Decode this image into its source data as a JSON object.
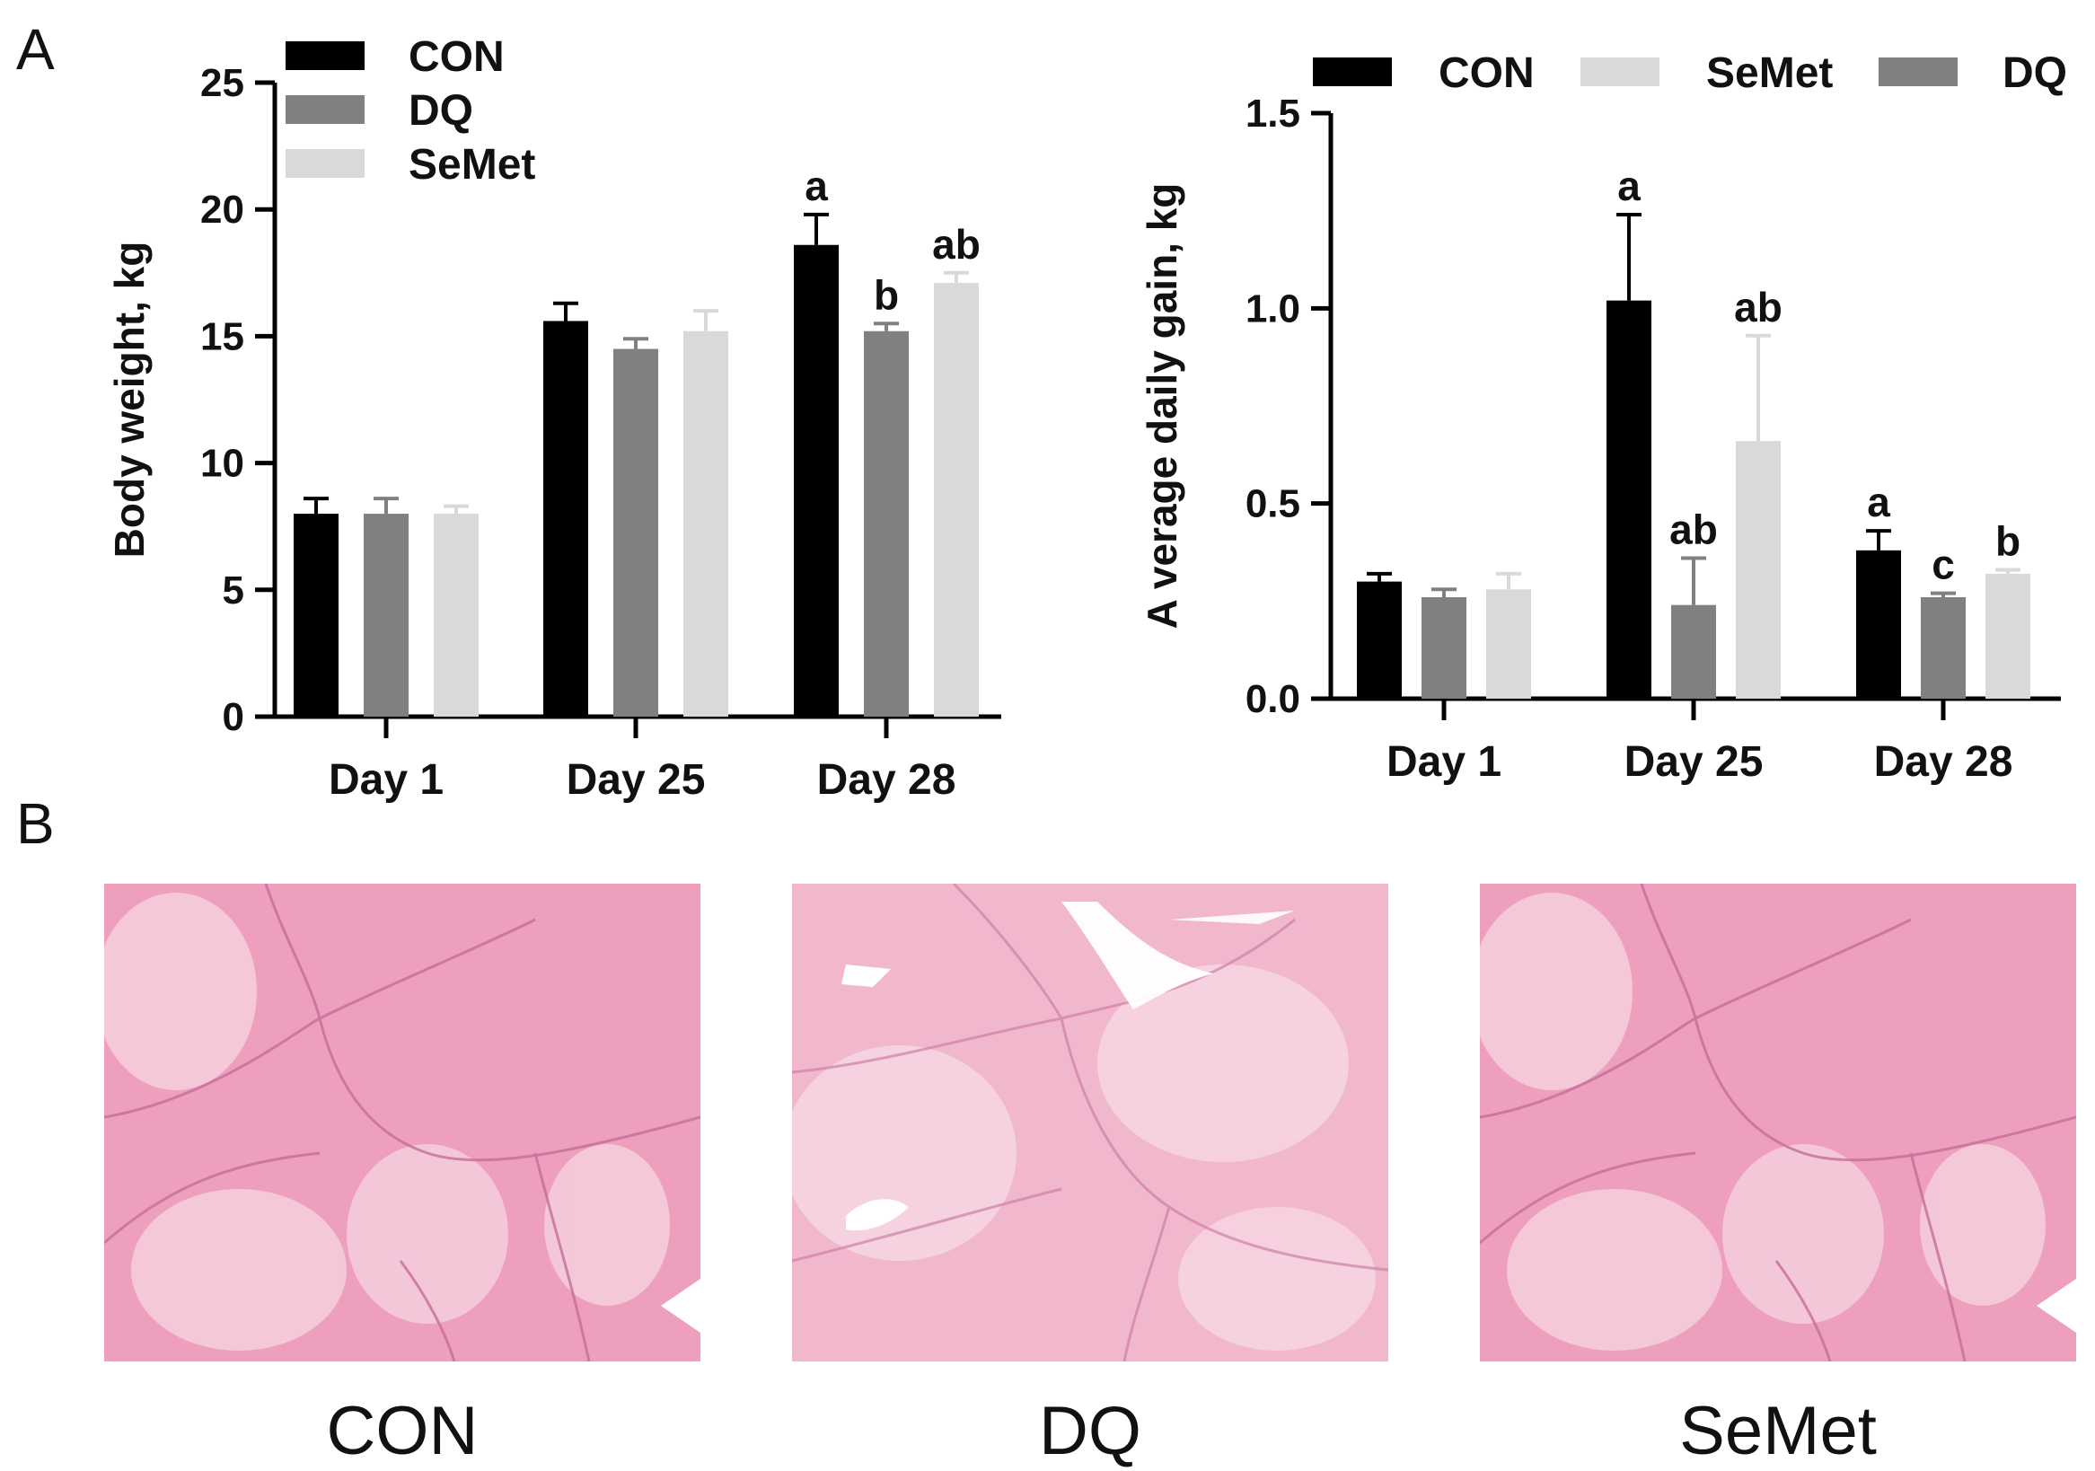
{
  "panels": {
    "a_label": "A",
    "b_label": "B"
  },
  "colors": {
    "CON": "#000000",
    "DQ": "#808080",
    "SeMet": "#d9d9d9",
    "tissue_light": "#f0b9cc",
    "tissue_mid": "#e995b3",
    "tissue_dark": "#c86593"
  },
  "chart_data": [
    {
      "type": "bar",
      "title": "",
      "xlabel": "",
      "ylabel": "Body weight, kg",
      "ylim": [
        0,
        25
      ],
      "yticks": [
        "0",
        "5",
        "10",
        "15",
        "20",
        "25"
      ],
      "categories": [
        "Day 1",
        "Day 25",
        "Day 28"
      ],
      "legend_order": [
        "CON",
        "DQ",
        "SeMet"
      ],
      "legend_position": "top-left",
      "series": [
        {
          "name": "CON",
          "values": [
            8.0,
            15.6,
            18.6
          ],
          "errors": [
            0.6,
            0.7,
            1.2
          ],
          "labels": [
            "",
            "",
            "a"
          ]
        },
        {
          "name": "DQ",
          "values": [
            8.0,
            14.5,
            15.2
          ],
          "errors": [
            0.6,
            0.4,
            0.3
          ],
          "labels": [
            "",
            "",
            "b"
          ]
        },
        {
          "name": "SeMet",
          "values": [
            8.0,
            15.2,
            17.1
          ],
          "errors": [
            0.3,
            0.8,
            0.4
          ],
          "labels": [
            "",
            "",
            "ab"
          ]
        }
      ]
    },
    {
      "type": "bar",
      "title": "",
      "xlabel": "",
      "ylabel": "A verage daily gain, kg",
      "ylim": [
        0,
        1.5
      ],
      "yticks": [
        "0.0",
        "0.5",
        "1.0",
        "1.5"
      ],
      "categories": [
        "Day 1",
        "Day 25",
        "Day 28"
      ],
      "legend_order": [
        "CON",
        "SeMet",
        "DQ"
      ],
      "legend_position": "top",
      "series": [
        {
          "name": "CON",
          "values": [
            0.3,
            1.02,
            0.38
          ],
          "errors": [
            0.02,
            0.22,
            0.05
          ],
          "labels": [
            "",
            "a",
            "a"
          ]
        },
        {
          "name": "DQ",
          "values": [
            0.26,
            0.24,
            0.26
          ],
          "errors": [
            0.02,
            0.12,
            0.01
          ],
          "labels": [
            "",
            "ab",
            "c"
          ]
        },
        {
          "name": "SeMet",
          "values": [
            0.28,
            0.66,
            0.32
          ],
          "errors": [
            0.04,
            0.27,
            0.01
          ],
          "labels": [
            "",
            "ab",
            "b"
          ]
        }
      ]
    }
  ],
  "micrographs": [
    {
      "caption": "CON"
    },
    {
      "caption": "DQ"
    },
    {
      "caption": "SeMet"
    }
  ]
}
